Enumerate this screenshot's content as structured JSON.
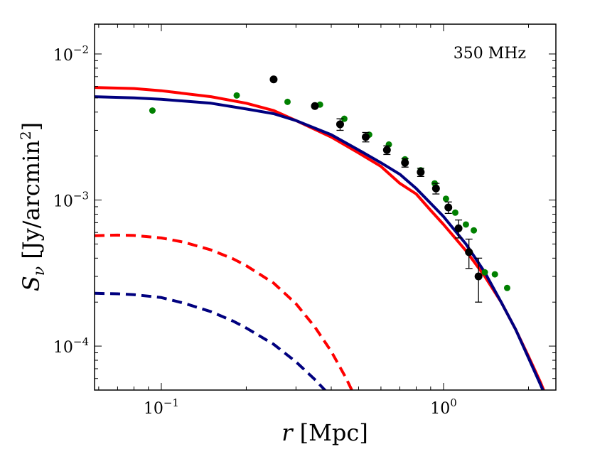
{
  "chart_data": {
    "type": "scatter",
    "title": "",
    "annotation": "350 MHz",
    "xlabel": {
      "italic": "r",
      "rest": " [Mpc]"
    },
    "ylabel": {
      "main": "S",
      "sub": "ν",
      "rest": " [Jy/arcmin",
      "sup": "2",
      "close": "]"
    },
    "x_scale": "log",
    "y_scale": "log",
    "xlim": [
      0.058,
      2.5
    ],
    "ylim": [
      5e-05,
      0.016
    ],
    "x_ticks": [
      {
        "value": 0.1,
        "base": "10",
        "exp": "−1"
      },
      {
        "value": 1,
        "base": "10",
        "exp": "0"
      }
    ],
    "y_ticks": [
      {
        "value": 0.0001,
        "base": "10",
        "exp": "−4"
      },
      {
        "value": 0.001,
        "base": "10",
        "exp": "−3"
      },
      {
        "value": 0.01,
        "base": "10",
        "exp": "−2"
      }
    ],
    "grid": false,
    "series": [
      {
        "type": "scatter",
        "color": "#000000",
        "points": [
          {
            "x": 0.25,
            "y": 0.0067,
            "err": 0
          },
          {
            "x": 0.35,
            "y": 0.0044,
            "err": 0
          },
          {
            "x": 0.43,
            "y": 0.0033,
            "err": 0.0003
          },
          {
            "x": 0.53,
            "y": 0.0027,
            "err": 0.0002
          },
          {
            "x": 0.63,
            "y": 0.0022,
            "err": 0.00015
          },
          {
            "x": 0.73,
            "y": 0.0018,
            "err": 0.00012
          },
          {
            "x": 0.83,
            "y": 0.00155,
            "err": 0.0001
          },
          {
            "x": 0.94,
            "y": 0.0012,
            "err": 0.0001
          },
          {
            "x": 1.04,
            "y": 0.00089,
            "err": 8e-05
          },
          {
            "x": 1.13,
            "y": 0.00064,
            "err": 9e-05
          },
          {
            "x": 1.23,
            "y": 0.00044,
            "err": 0.0001
          },
          {
            "x": 1.33,
            "y": 0.0003,
            "err": 0.0001
          }
        ]
      },
      {
        "type": "scatter",
        "color": "#008000",
        "points": [
          {
            "x": 0.093,
            "y": 0.0041
          },
          {
            "x": 0.185,
            "y": 0.0052
          },
          {
            "x": 0.28,
            "y": 0.0047
          },
          {
            "x": 0.365,
            "y": 0.0045
          },
          {
            "x": 0.445,
            "y": 0.0036
          },
          {
            "x": 0.545,
            "y": 0.0028
          },
          {
            "x": 0.64,
            "y": 0.0024
          },
          {
            "x": 0.73,
            "y": 0.0019
          },
          {
            "x": 0.83,
            "y": 0.0016
          },
          {
            "x": 0.93,
            "y": 0.0013
          },
          {
            "x": 1.02,
            "y": 0.00102
          },
          {
            "x": 1.1,
            "y": 0.00082
          },
          {
            "x": 1.2,
            "y": 0.00068
          },
          {
            "x": 1.28,
            "y": 0.00062
          },
          {
            "x": 1.4,
            "y": 0.00032
          },
          {
            "x": 1.52,
            "y": 0.00031
          },
          {
            "x": 1.68,
            "y": 0.00025
          }
        ]
      },
      {
        "type": "line",
        "style": "solid",
        "color": "#ff0000",
        "x": [
          0.058,
          0.08,
          0.1,
          0.15,
          0.2,
          0.25,
          0.3,
          0.4,
          0.5,
          0.6,
          0.7,
          0.8,
          0.9,
          1.0,
          1.2,
          1.4,
          1.6,
          1.8,
          2.0,
          2.2,
          2.4
        ],
        "y": [
          0.0059,
          0.0058,
          0.0056,
          0.0051,
          0.0046,
          0.0041,
          0.0035,
          0.0027,
          0.0021,
          0.0017,
          0.0013,
          0.0011,
          0.00085,
          0.00068,
          0.00045,
          0.0003,
          0.0002,
          0.00013,
          8.5e-05,
          5.7e-05,
          3.8e-05
        ]
      },
      {
        "type": "line",
        "style": "solid",
        "color": "#00007f",
        "x": [
          0.058,
          0.08,
          0.1,
          0.15,
          0.2,
          0.25,
          0.3,
          0.4,
          0.5,
          0.6,
          0.7,
          0.8,
          0.9,
          1.0,
          1.2,
          1.4,
          1.6,
          1.8,
          2.0,
          2.2,
          2.3
        ],
        "y": [
          0.0051,
          0.005,
          0.0049,
          0.0046,
          0.0042,
          0.0039,
          0.0035,
          0.0028,
          0.0022,
          0.0018,
          0.0015,
          0.0012,
          0.00095,
          0.00077,
          0.0005,
          0.00032,
          0.0002,
          0.00013,
          8.3e-05,
          5.5e-05,
          4.5e-05
        ]
      },
      {
        "type": "line",
        "style": "dashed",
        "color": "#ff0000",
        "x": [
          0.058,
          0.07,
          0.08,
          0.1,
          0.12,
          0.15,
          0.18,
          0.2,
          0.25,
          0.3,
          0.35,
          0.4,
          0.45,
          0.5
        ],
        "y": [
          0.00057,
          0.000575,
          0.000572,
          0.00055,
          0.000515,
          0.000455,
          0.000395,
          0.000355,
          0.00027,
          0.000195,
          0.000135,
          9.2e-05,
          6.1e-05,
          4e-05
        ]
      },
      {
        "type": "line",
        "style": "dashed",
        "color": "#00007f",
        "x": [
          0.058,
          0.07,
          0.08,
          0.1,
          0.12,
          0.15,
          0.18,
          0.2,
          0.25,
          0.3,
          0.35,
          0.4
        ],
        "y": [
          0.00023,
          0.000228,
          0.000225,
          0.000215,
          0.000197,
          0.000172,
          0.000148,
          0.000133,
          0.000103,
          7.8e-05,
          5.9e-05,
          4.5e-05
        ]
      }
    ]
  }
}
